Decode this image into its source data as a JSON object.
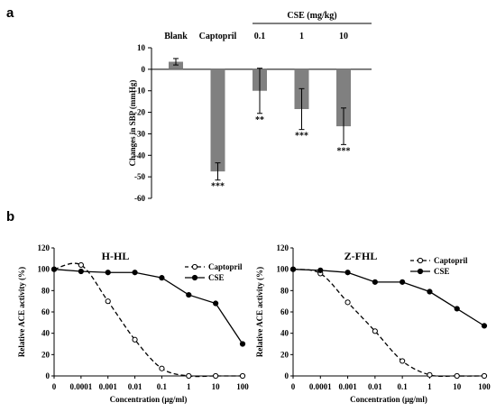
{
  "panels": {
    "a": "a",
    "b": "b"
  },
  "chart_data": [
    {
      "type": "bar",
      "panel": "a",
      "categories": [
        "Blank",
        "Captopril",
        "0.1",
        "1",
        "10"
      ],
      "values": [
        3.5,
        -47.5,
        -10,
        -18.5,
        -26.5
      ],
      "errors": [
        1.5,
        4,
        10.5,
        9.5,
        8.5
      ],
      "significance": [
        "",
        "***",
        "**",
        "***",
        "***"
      ],
      "group_label": "CSE (mg/kg)",
      "ylabel": "Changes in SBP (mmHg)",
      "ylim": [
        -60,
        10
      ],
      "yticks": [
        "10",
        "0",
        "-10",
        "-20",
        "-30",
        "-40",
        "-50",
        "-60"
      ],
      "color": "#808080"
    },
    {
      "type": "line",
      "panel": "b",
      "title": "H-HL",
      "xlabel": "Concentration (μg/ml)",
      "ylabel": "Relative ACE activity (%)",
      "ylim": [
        0,
        120
      ],
      "yticks": [
        "0",
        "20",
        "40",
        "60",
        "80",
        "100",
        "120"
      ],
      "xticks": [
        "0",
        "0.0001",
        "0.001",
        "0.01",
        "0.1",
        "1",
        "10",
        "100"
      ],
      "legend_position": "top-right",
      "series": [
        {
          "name": "Captopril",
          "style": "dashed-open-circle",
          "x": [
            "0",
            "0.0001",
            "0.001",
            "0.01",
            "0.1",
            "1",
            "10",
            "100"
          ],
          "y": [
            100,
            104,
            70,
            34,
            7,
            0,
            0,
            0
          ]
        },
        {
          "name": "CSE",
          "style": "solid-filled-circle",
          "x": [
            "0",
            "0.0001",
            "0.001",
            "0.01",
            "0.1",
            "1",
            "10",
            "100"
          ],
          "y": [
            100,
            98,
            97,
            97,
            92,
            76,
            68,
            30
          ]
        }
      ]
    },
    {
      "type": "line",
      "panel": "b",
      "title": "Z-FHL",
      "xlabel": "Concentration (μg/ml)",
      "ylabel": "Relative ACE activity (%)",
      "ylim": [
        0,
        120
      ],
      "yticks": [
        "0",
        "20",
        "40",
        "60",
        "80",
        "100",
        "120"
      ],
      "xticks": [
        "0",
        "0.0001",
        "0.001",
        "0.01",
        "0.1",
        "1",
        "10",
        "100"
      ],
      "legend_position": "top-right",
      "series": [
        {
          "name": "Captopril",
          "style": "dashed-open-circle",
          "x": [
            "0",
            "0.0001",
            "0.001",
            "0.01",
            "0.1",
            "1",
            "10",
            "100"
          ],
          "y": [
            100,
            96,
            69,
            42,
            14,
            1,
            0,
            0
          ]
        },
        {
          "name": "CSE",
          "style": "solid-filled-circle",
          "x": [
            "0",
            "0.0001",
            "0.001",
            "0.01",
            "0.1",
            "1",
            "10",
            "100"
          ],
          "y": [
            100,
            99,
            97,
            88,
            88,
            79,
            63,
            47
          ]
        }
      ]
    }
  ]
}
